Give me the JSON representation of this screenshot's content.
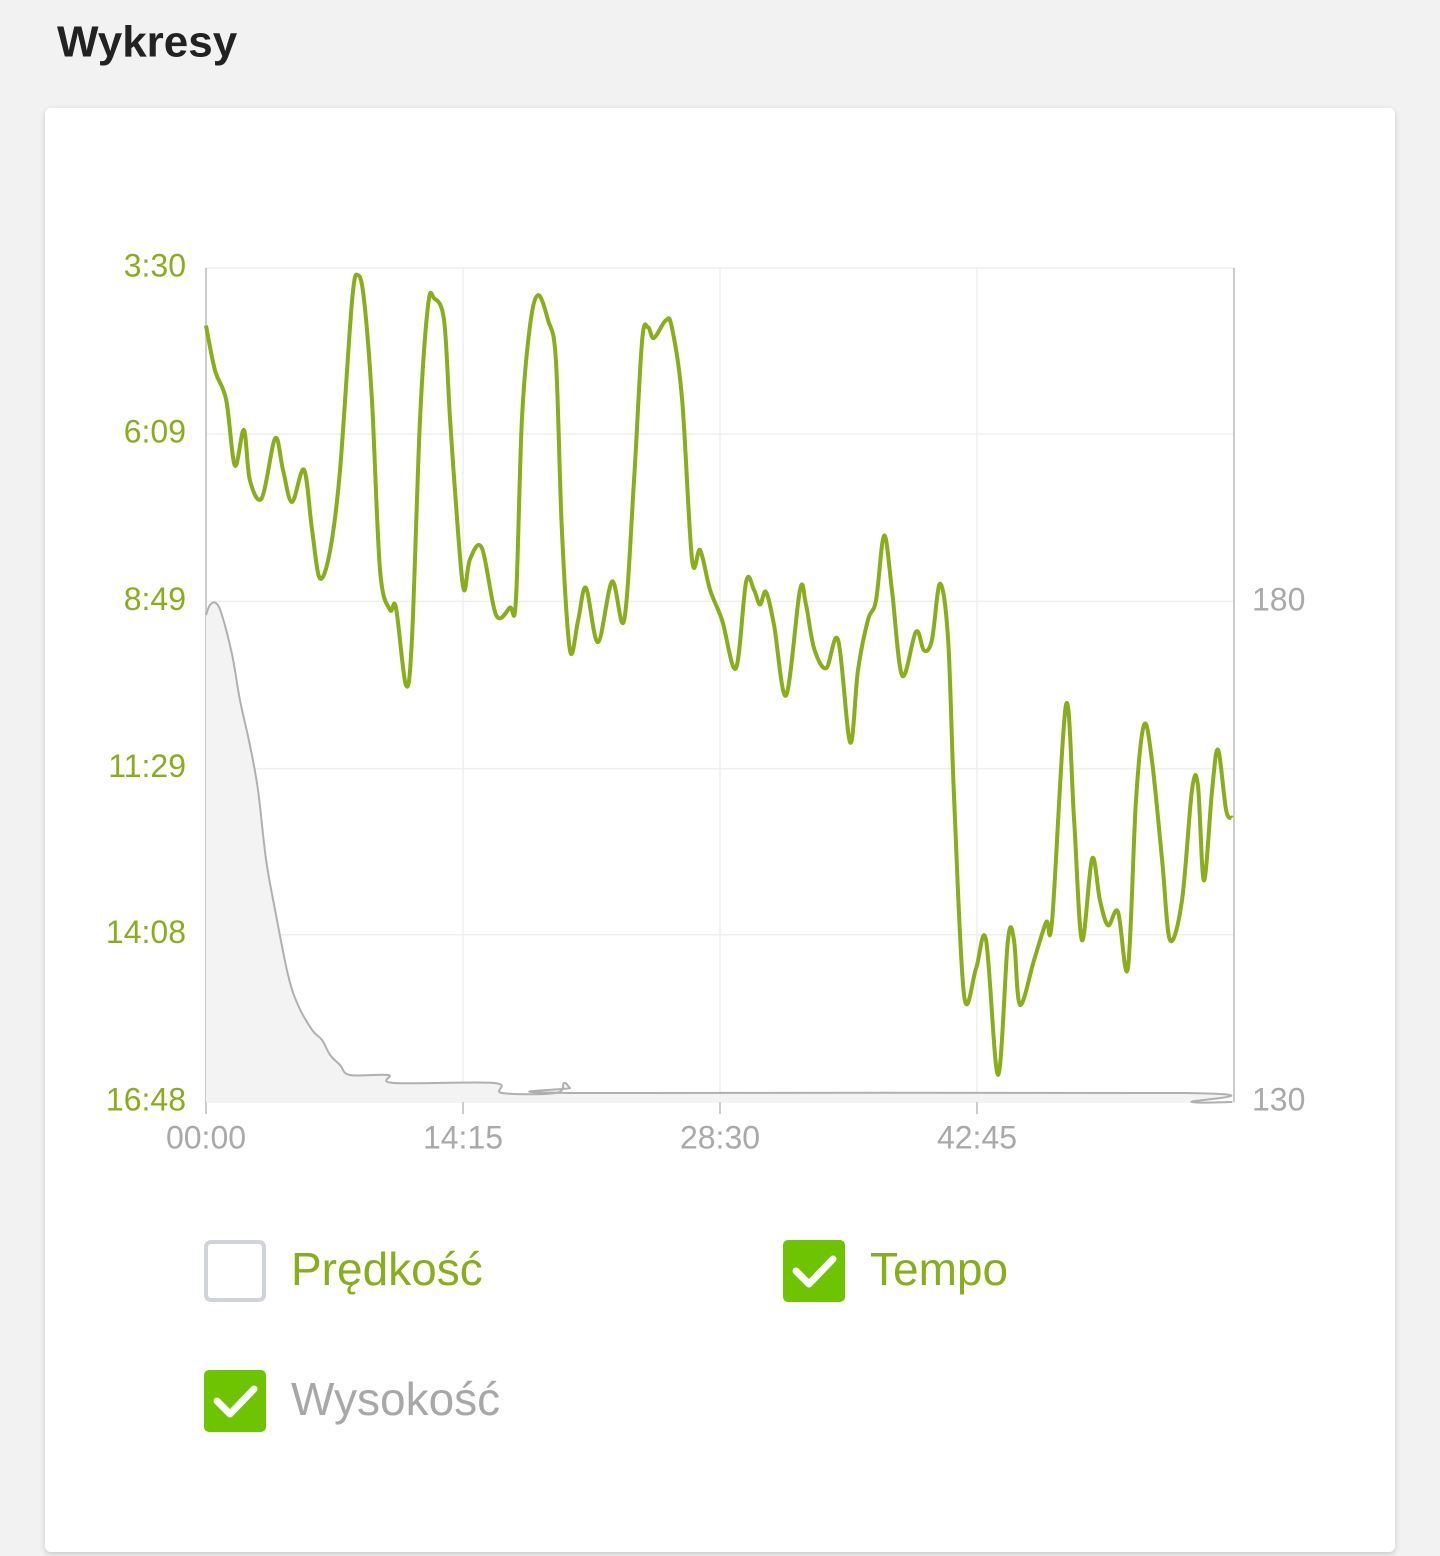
{
  "page_title": "Wykresy",
  "chart_data": {
    "type": "line",
    "xlim": [
      0,
      3420
    ],
    "xticks": [
      {
        "value": 0,
        "label": "00:00"
      },
      {
        "value": 855,
        "label": "14:15"
      },
      {
        "value": 1710,
        "label": "28:30"
      },
      {
        "value": 2565,
        "label": "42:45"
      }
    ],
    "ylim": [
      1008,
      210
    ],
    "yticks": [
      {
        "value": 210,
        "label": "3:30"
      },
      {
        "value": 369,
        "label": "6:09"
      },
      {
        "value": 529,
        "label": "8:49"
      },
      {
        "value": 689,
        "label": "11:29"
      },
      {
        "value": 848,
        "label": "14:08"
      },
      {
        "value": 1008,
        "label": "16:48"
      }
    ],
    "y2lim": [
      130,
      213.4
    ],
    "y2ticks": [
      130,
      180
    ],
    "grid": true,
    "series": [
      {
        "name": "Tempo",
        "color": "#8aad1c",
        "checked": true,
        "label_color": "#8aad1c",
        "x": [
          0,
          30,
          67,
          96,
          126,
          146,
          186,
          230,
          256,
          286,
          326,
          353,
          379,
          413,
          446,
          486,
          506,
          526,
          552,
          579,
          612,
          632,
          665,
          685,
          712,
          739,
          759,
          792,
          812,
          838,
          858,
          878,
          918,
          965,
          1011,
          1031,
          1051,
          1078,
          1105,
          1138,
          1164,
          1184,
          1211,
          1238,
          1264,
          1304,
          1351,
          1391,
          1424,
          1451,
          1471,
          1490,
          1530,
          1550,
          1584,
          1617,
          1644,
          1677,
          1717,
          1763,
          1797,
          1823,
          1843,
          1863,
          1890,
          1930,
          1976,
          1996,
          2023,
          2063,
          2103,
          2143,
          2169,
          2202,
          2229,
          2256,
          2282,
          2316,
          2362,
          2389,
          2415,
          2442,
          2469,
          2489,
          2522,
          2562,
          2595,
          2635,
          2668,
          2688,
          2708,
          2755,
          2795,
          2815,
          2861,
          2888,
          2914,
          2948,
          2974,
          3001,
          3034,
          3067,
          3094,
          3121,
          3147,
          3181,
          3207,
          3247,
          3280,
          3300,
          3320,
          3347,
          3367,
          3394,
          3414
        ],
        "values": [
          265,
          308,
          336,
          399,
          365,
          413,
          430,
          373,
          403,
          434,
          403,
          461,
          507,
          480,
          403,
          241,
          217,
          241,
          336,
          499,
          537,
          535,
          609,
          566,
          355,
          245,
          239,
          260,
          355,
          461,
          518,
          489,
          478,
          542,
          535,
          528,
          355,
          265,
          236,
          260,
          298,
          461,
          576,
          547,
          516,
          568,
          510,
          547,
          413,
          279,
          267,
          277,
          260,
          267,
          336,
          489,
          480,
          518,
          547,
          593,
          510,
          518,
          532,
          520,
          552,
          619,
          518,
          532,
          574,
          593,
          566,
          664,
          595,
          547,
          528,
          466,
          518,
          600,
          558,
          576,
          566,
          512,
          566,
          719,
          906,
          880,
          853,
          982,
          853,
          853,
          915,
          872,
          836,
          834,
          628,
          738,
          853,
          775,
          815,
          839,
          826,
          880,
          719,
          647,
          681,
          777,
          853,
          815,
          710,
          705,
          796,
          710,
          671,
          729,
          736
        ]
      },
      {
        "name": "Wysokość",
        "color": "#b0b0b0",
        "fill": "#f3f3f3",
        "axis": "y2",
        "checked": true,
        "label_color": "#a8a8a8",
        "x": [
          0,
          13,
          33,
          53,
          87,
          113,
          146,
          173,
          200,
          233,
          273,
          306,
          353,
          386,
          413,
          446,
          479,
          606,
          625,
          958,
          985,
          1164,
          1191,
          1211,
          1231,
          3260,
          3280,
          3414
        ],
        "values": [
          178.7,
          179.7,
          179.9,
          178.7,
          174.7,
          170.2,
          165.7,
          161.2,
          154.2,
          148.7,
          142.7,
          139.7,
          137.2,
          136.2,
          134.7,
          133.7,
          132.7,
          132.7,
          131.9,
          131.9,
          130.9,
          130.9,
          131.9,
          131.4,
          130.9,
          130.9,
          130,
          130
        ]
      }
    ],
    "unchecked_series": [
      {
        "name": "Prędkość",
        "checked": false,
        "label_color": "#8aad1c"
      }
    ],
    "checkbox_color": "#6ec400"
  }
}
